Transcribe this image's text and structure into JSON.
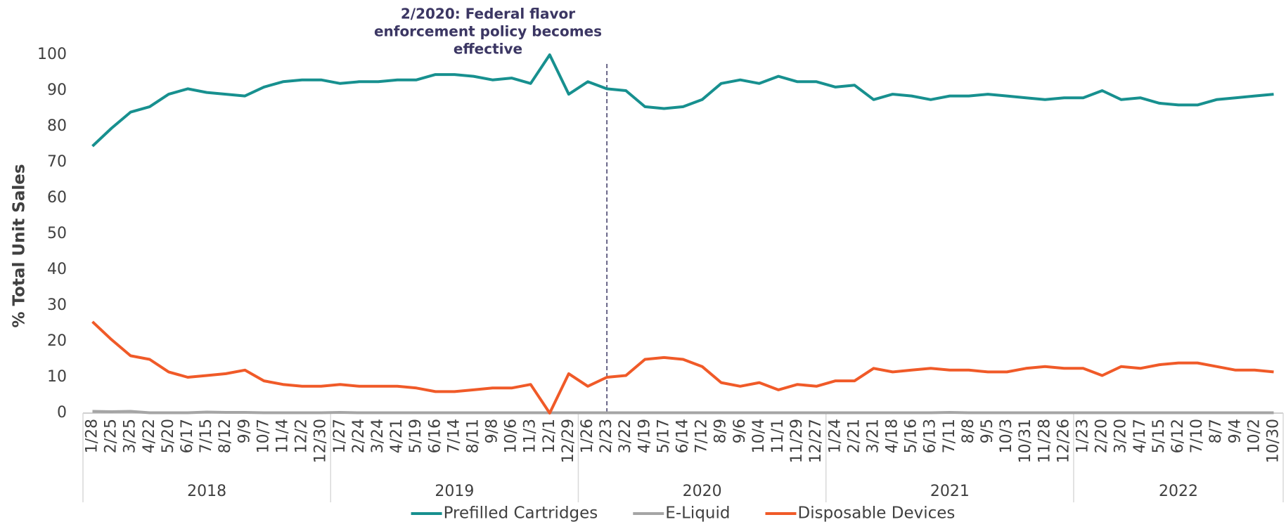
{
  "chart_data": {
    "type": "line",
    "y_label": "% Total Unit Sales",
    "annotation": {
      "text": [
        "2/2020: Federal flavor",
        "enforcement policy becomes",
        "effective"
      ],
      "category": "2/23"
    },
    "years": [
      "2018",
      "2019",
      "2020",
      "2021",
      "2022"
    ],
    "categories": [
      "1/28",
      "2/25",
      "3/25",
      "4/22",
      "5/20",
      "6/17",
      "7/15",
      "8/12",
      "9/9",
      "10/7",
      "11/4",
      "12/2",
      "12/30",
      "1/27",
      "2/24",
      "3/24",
      "4/21",
      "5/19",
      "6/16",
      "7/14",
      "8/11",
      "9/8",
      "10/6",
      "11/3",
      "12/1",
      "12/29",
      "1/26",
      "2/23",
      "3/22",
      "4/19",
      "5/17",
      "6/14",
      "7/12",
      "8/9",
      "9/6",
      "10/4",
      "11/1",
      "11/29",
      "12/27",
      "1/24",
      "2/21",
      "3/21",
      "4/18",
      "5/16",
      "6/13",
      "7/11",
      "8/8",
      "9/5",
      "10/3",
      "10/31",
      "11/28",
      "12/26",
      "1/23",
      "2/20",
      "3/20",
      "4/17",
      "5/15",
      "6/12",
      "7/10",
      "8/7",
      "9/4",
      "10/2",
      "10/30"
    ],
    "series": [
      {
        "name": "Prefilled Cartridges",
        "color": "#17908f",
        "values": [
          74.5,
          79.5,
          84,
          85.5,
          89,
          90.5,
          89.5,
          89,
          88.5,
          91,
          92.5,
          93,
          93,
          92,
          92.5,
          92.5,
          93,
          93,
          94.5,
          94.5,
          94,
          93,
          93.5,
          92,
          100,
          89,
          92.5,
          90.5,
          90,
          85.5,
          85,
          85.5,
          87.5,
          92,
          93,
          92,
          94,
          92.5,
          92.5,
          91,
          91.5,
          87.5,
          89,
          88.5,
          87.5,
          88.5,
          88.5,
          89,
          88.5,
          88,
          87.5,
          88,
          88,
          90,
          87.5,
          88,
          86.5,
          86,
          86,
          87.5,
          88,
          88.5,
          89
        ]
      },
      {
        "name": "E-Liquid",
        "color": "#a5a5a5",
        "values": [
          0.5,
          0.4,
          0.5,
          0.1,
          0.1,
          0.1,
          0.3,
          0.2,
          0.2,
          0.1,
          0.1,
          0.1,
          0.1,
          0.2,
          0.1,
          0.1,
          0.1,
          0.1,
          0.1,
          0.1,
          0.1,
          0.1,
          0.1,
          0.1,
          0.1,
          0.1,
          0.1,
          0.1,
          0.1,
          0.1,
          0.1,
          0.1,
          0.1,
          0.1,
          0.1,
          0.1,
          0.1,
          0.1,
          0.1,
          0.1,
          0.1,
          0.1,
          0.1,
          0.1,
          0.1,
          0.2,
          0.1,
          0.1,
          0.1,
          0.1,
          0.1,
          0.1,
          0.1,
          0.1,
          0.1,
          0.1,
          0.1,
          0.1,
          0.1,
          0.1,
          0.1,
          0.1,
          0.1
        ]
      },
      {
        "name": "Disposable Devices",
        "color": "#f05a28",
        "values": [
          25.5,
          20.5,
          16,
          15,
          11.5,
          10,
          10.5,
          11,
          12,
          9,
          8,
          7.5,
          7.5,
          8,
          7.5,
          7.5,
          7.5,
          7,
          6,
          6,
          6.5,
          7,
          7,
          8,
          0,
          11,
          7.5,
          10,
          10.5,
          15,
          15.5,
          15,
          13,
          8.5,
          7.5,
          8.5,
          6.5,
          8,
          7.5,
          9,
          9,
          12.5,
          11.5,
          12,
          12.5,
          12,
          12,
          11.5,
          11.5,
          12.5,
          13,
          12.5,
          12.5,
          10.5,
          13,
          12.5,
          13.5,
          14,
          14,
          13,
          12,
          12,
          11.5
        ]
      }
    ],
    "ylim": [
      0,
      100
    ],
    "yticks": [
      0,
      10,
      20,
      30,
      40,
      50,
      60,
      70,
      80,
      90,
      100
    ],
    "grid": false,
    "legend": "bottom"
  }
}
